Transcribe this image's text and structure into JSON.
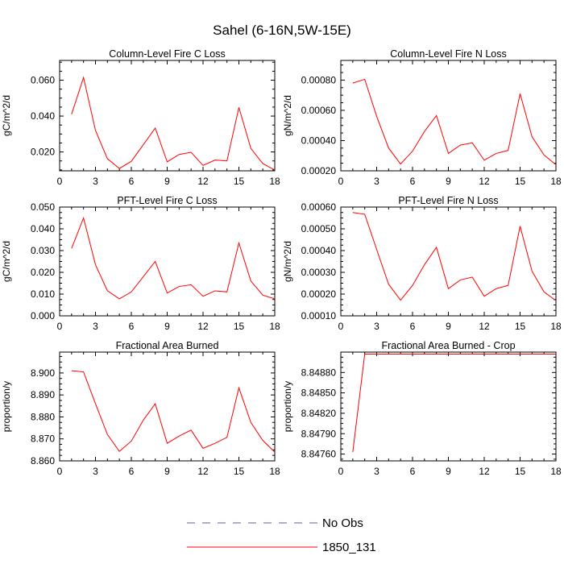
{
  "figure": {
    "title": "Sahel (6-16N,5W-15E)"
  },
  "legend": {
    "items": [
      {
        "label": "No Obs",
        "style": "dashed",
        "color": "#5b5bb0"
      },
      {
        "label": "1850_131",
        "style": "solid",
        "color": "#ff0000"
      }
    ]
  },
  "colors": {
    "series": "#ff0000",
    "axis": "#000000"
  },
  "chart_data": [
    {
      "type": "line",
      "title": "Column-Level Fire C Loss",
      "xlabel": "",
      "ylabel": "gC/m^2/d",
      "xlim": [
        0,
        18
      ],
      "ylim": [
        0.0095,
        0.071
      ],
      "xticks": [
        0,
        3,
        6,
        9,
        12,
        15,
        18
      ],
      "xtick_labels": [
        "0",
        "3",
        "6",
        "9",
        "12",
        "15",
        "18"
      ],
      "yticks": [
        0.02,
        0.04,
        0.06
      ],
      "ytick_labels": [
        "0.020",
        "0.040",
        "0.060"
      ],
      "series": [
        {
          "name": "1850_131",
          "x": [
            1,
            2,
            3,
            4,
            5,
            6,
            7,
            8,
            9,
            10,
            11,
            12,
            13,
            14,
            15,
            16,
            17,
            18
          ],
          "values": [
            0.041,
            0.0615,
            0.032,
            0.0162,
            0.0108,
            0.0148,
            0.024,
            0.0333,
            0.0145,
            0.0186,
            0.0198,
            0.0125,
            0.0155,
            0.015,
            0.0448,
            0.022,
            0.0135,
            0.01
          ]
        }
      ]
    },
    {
      "type": "line",
      "title": "Column-Level Fire N Loss",
      "xlabel": "",
      "ylabel": "gN/m^2/d",
      "xlim": [
        0,
        18
      ],
      "ylim": [
        0.0002,
        0.00093
      ],
      "xticks": [
        0,
        3,
        6,
        9,
        12,
        15,
        18
      ],
      "xtick_labels": [
        "0",
        "3",
        "6",
        "9",
        "12",
        "15",
        "18"
      ],
      "yticks": [
        0.0002,
        0.0004,
        0.0006,
        0.0008
      ],
      "ytick_labels": [
        "0.00020",
        "0.00040",
        "0.00060",
        "0.00080"
      ],
      "series": [
        {
          "name": "1850_131",
          "x": [
            1,
            2,
            3,
            4,
            5,
            6,
            7,
            8,
            9,
            10,
            11,
            12,
            13,
            14,
            15,
            16,
            17,
            18
          ],
          "values": [
            0.00078,
            0.000805,
            0.00056,
            0.00035,
            0.000245,
            0.00033,
            0.00046,
            0.000565,
            0.000315,
            0.00037,
            0.000385,
            0.00027,
            0.000315,
            0.000335,
            0.00071,
            0.000425,
            0.000305,
            0.00024
          ]
        }
      ]
    },
    {
      "type": "line",
      "title": "PFT-Level Fire C Loss",
      "xlabel": "",
      "ylabel": "gC/m^2/d",
      "xlim": [
        0,
        18
      ],
      "ylim": [
        0.0,
        0.05
      ],
      "xticks": [
        0,
        3,
        6,
        9,
        12,
        15,
        18
      ],
      "xtick_labels": [
        "0",
        "3",
        "6",
        "9",
        "12",
        "15",
        "18"
      ],
      "yticks": [
        0.0,
        0.01,
        0.02,
        0.03,
        0.04,
        0.05
      ],
      "ytick_labels": [
        "0.000",
        "0.010",
        "0.020",
        "0.030",
        "0.040",
        "0.050"
      ],
      "series": [
        {
          "name": "1850_131",
          "x": [
            1,
            2,
            3,
            4,
            5,
            6,
            7,
            8,
            9,
            10,
            11,
            12,
            13,
            14,
            15,
            16,
            17,
            18
          ],
          "values": [
            0.031,
            0.045,
            0.0235,
            0.0115,
            0.0078,
            0.011,
            0.018,
            0.025,
            0.0105,
            0.0135,
            0.0143,
            0.009,
            0.0115,
            0.011,
            0.0335,
            0.016,
            0.0095,
            0.0078
          ]
        }
      ]
    },
    {
      "type": "line",
      "title": "PFT-Level Fire N Loss",
      "xlabel": "",
      "ylabel": "gN/m^2/d",
      "xlim": [
        0,
        18
      ],
      "ylim": [
        0.0001,
        0.0006
      ],
      "xticks": [
        0,
        3,
        6,
        9,
        12,
        15,
        18
      ],
      "xtick_labels": [
        "0",
        "3",
        "6",
        "9",
        "12",
        "15",
        "18"
      ],
      "yticks": [
        0.0001,
        0.0002,
        0.0003,
        0.0004,
        0.0005,
        0.0006
      ],
      "ytick_labels": [
        "0.00010",
        "0.00020",
        "0.00030",
        "0.00040",
        "0.00050",
        "0.00060"
      ],
      "series": [
        {
          "name": "1850_131",
          "x": [
            1,
            2,
            3,
            4,
            5,
            6,
            7,
            8,
            9,
            10,
            11,
            12,
            13,
            14,
            15,
            16,
            17,
            18
          ],
          "values": [
            0.000575,
            0.000567,
            0.000405,
            0.000245,
            0.000172,
            0.00024,
            0.000335,
            0.000415,
            0.000225,
            0.000265,
            0.000278,
            0.00019,
            0.000225,
            0.00024,
            0.000512,
            0.000305,
            0.00021,
            0.00017
          ]
        }
      ]
    },
    {
      "type": "line",
      "title": "Fractional Area Burned",
      "xlabel": "",
      "ylabel": "proportion/y",
      "xlim": [
        0,
        18
      ],
      "ylim": [
        8.86,
        8.9095
      ],
      "xticks": [
        0,
        3,
        6,
        9,
        12,
        15,
        18
      ],
      "xtick_labels": [
        "0",
        "3",
        "6",
        "9",
        "12",
        "15",
        "18"
      ],
      "yticks": [
        8.86,
        8.87,
        8.88,
        8.89,
        8.9
      ],
      "ytick_labels": [
        "8.860",
        "8.870",
        "8.880",
        "8.890",
        "8.900"
      ],
      "series": [
        {
          "name": "1850_131",
          "x": [
            1,
            2,
            3,
            4,
            5,
            6,
            7,
            8,
            9,
            10,
            11,
            12,
            13,
            14,
            15,
            16,
            17,
            18
          ],
          "values": [
            8.901,
            8.9005,
            8.886,
            8.872,
            8.8643,
            8.869,
            8.8785,
            8.886,
            8.868,
            8.8713,
            8.874,
            8.8657,
            8.868,
            8.8707,
            8.8932,
            8.8775,
            8.8693,
            8.864
          ]
        }
      ]
    },
    {
      "type": "line",
      "title": "Fractional Area Burned - Crop",
      "xlabel": "",
      "ylabel": "proportion/y",
      "xlim": [
        0,
        18
      ],
      "ylim": [
        8.8475,
        8.8491
      ],
      "xticks": [
        0,
        3,
        6,
        9,
        12,
        15,
        18
      ],
      "xtick_labels": [
        "0",
        "3",
        "6",
        "9",
        "12",
        "15",
        "18"
      ],
      "yticks": [
        8.8476,
        8.8479,
        8.8482,
        8.8485,
        8.8488
      ],
      "ytick_labels": [
        "8.84760",
        "8.84790",
        "8.84820",
        "8.84850",
        "8.84880"
      ],
      "series": [
        {
          "name": "1850_131",
          "x": [
            1,
            2,
            3,
            4,
            5,
            6,
            7,
            8,
            9,
            10,
            11,
            12,
            13,
            14,
            15,
            16,
            17,
            18
          ],
          "values": [
            8.84763,
            8.84907,
            8.84907,
            8.84907,
            8.84907,
            8.84907,
            8.84907,
            8.84907,
            8.84907,
            8.84907,
            8.84907,
            8.84907,
            8.84907,
            8.84907,
            8.84907,
            8.84907,
            8.84907,
            8.84907
          ]
        }
      ]
    }
  ]
}
